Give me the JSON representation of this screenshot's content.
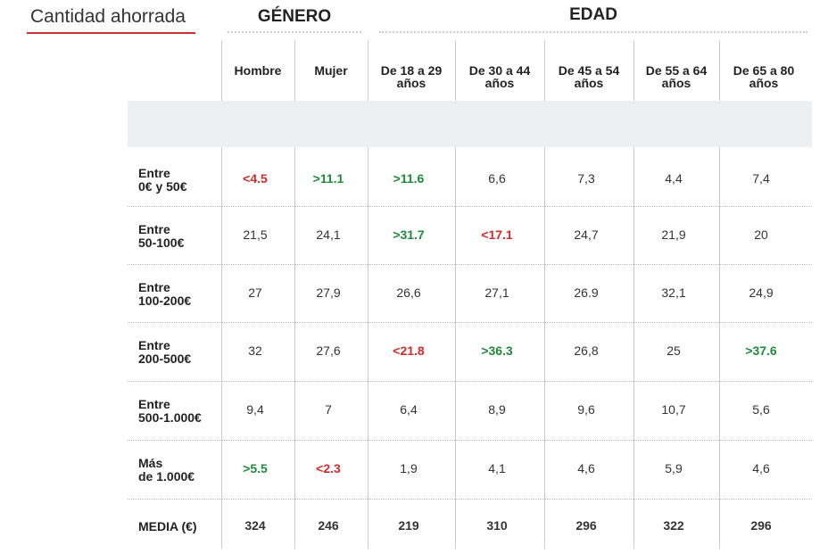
{
  "header": {
    "title": "Cantidad ahorrada",
    "groups": [
      "GÉNERO",
      "EDAD"
    ]
  },
  "table": {
    "columns": [
      "Hombre",
      "Mujer",
      "De 18 a 29\naños",
      "De 30 a 44\naños",
      "De 45 a 54\naños",
      "De 55 a 64\naños",
      "De 65 a 80\naños"
    ],
    "rows": [
      {
        "label": "Entre\n0€ y 50€",
        "cells": [
          "<4.5",
          ">11.1",
          ">11.6",
          "6,6",
          "7,3",
          "4,4",
          "7,4"
        ]
      },
      {
        "label": "Entre\n50-100€",
        "cells": [
          "21,5",
          "24,1",
          ">31.7",
          "<17.1",
          "24,7",
          "21,9",
          "20"
        ]
      },
      {
        "label": "Entre\n100-200€",
        "cells": [
          "27",
          "27,9",
          "26,6",
          "27,1",
          "26.9",
          "32,1",
          "24,9"
        ]
      },
      {
        "label": "Entre\n200-500€",
        "cells": [
          "32",
          "27,6",
          "<21.8",
          ">36.3",
          "26,8",
          "25",
          ">37.6"
        ]
      },
      {
        "label": "Entre\n500-1.000€",
        "cells": [
          "9,4",
          "7",
          "6,4",
          "8,9",
          "9,6",
          "10,7",
          "5,6"
        ]
      },
      {
        "label": "Más\nde 1.000€",
        "cells": [
          ">5.5",
          "<2.3",
          "1,9",
          "4,1",
          "4,6",
          "5,9",
          "4,6"
        ]
      },
      {
        "label": "MEDIA (€)",
        "cells": [
          "324",
          "246",
          "219",
          "310",
          "296",
          "322",
          "296"
        ],
        "bold": true
      }
    ]
  }
}
